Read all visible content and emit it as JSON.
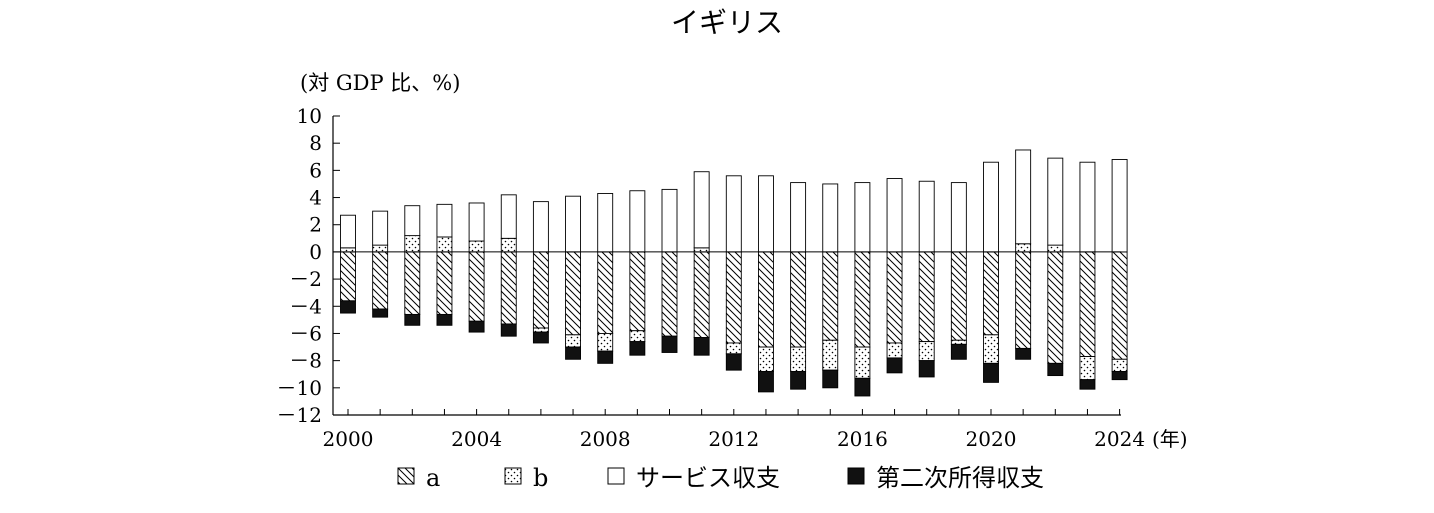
{
  "chart_data": {
    "type": "bar",
    "stacked": true,
    "title": "イギリス",
    "ylabel": "(対 GDP 比、%)",
    "xlabel": "(年)",
    "ylim": [
      -12,
      10
    ],
    "yticks": [
      10,
      8,
      6,
      4,
      2,
      0,
      -2,
      -4,
      -6,
      -8,
      -10,
      -12
    ],
    "ytick_labels": [
      "10",
      "8",
      "6",
      "4",
      "2",
      "0",
      "－2",
      "－4",
      "－6",
      "－8",
      "－10",
      "－12"
    ],
    "xtick_labels": [
      "2000",
      "2004",
      "2008",
      "2012",
      "2016",
      "2020",
      "2024"
    ],
    "categories": [
      2000,
      2001,
      2002,
      2003,
      2004,
      2005,
      2006,
      2007,
      2008,
      2009,
      2010,
      2011,
      2012,
      2013,
      2014,
      2015,
      2016,
      2017,
      2018,
      2019,
      2020,
      2021,
      2022,
      2023,
      2024
    ],
    "series": [
      {
        "name": "a",
        "pattern": "hatch",
        "values": [
          -3.6,
          -4.2,
          -4.6,
          -4.6,
          -5.1,
          -5.3,
          -5.6,
          -6.1,
          -6.0,
          -5.8,
          -6.2,
          -6.3,
          -6.7,
          -7.0,
          -7.0,
          -6.5,
          -7.0,
          -6.7,
          -6.6,
          -6.5,
          -6.1,
          -7.1,
          -8.2,
          -7.7,
          -7.9
        ]
      },
      {
        "name": "b",
        "pattern": "dots",
        "values": [
          0.3,
          0.5,
          1.2,
          1.1,
          0.8,
          1.0,
          0,
          0,
          0,
          0,
          0,
          0.3,
          0,
          0,
          0,
          0,
          0,
          0,
          0,
          0,
          0,
          0.6,
          0.5,
          0,
          0
        ]
      },
      {
        "name": "b",
        "pattern": "dots",
        "legend": false,
        "values": [
          0,
          0,
          0,
          0,
          0,
          0,
          -0.3,
          -0.9,
          -1.3,
          -0.8,
          0,
          0,
          -0.8,
          -1.8,
          -1.8,
          -2.2,
          -2.3,
          -1.1,
          -1.4,
          -0.3,
          -2.1,
          0,
          0,
          -1.7,
          -0.9
        ]
      },
      {
        "name": "サービス収支",
        "pattern": "white",
        "values": [
          2.4,
          2.5,
          2.2,
          2.4,
          2.8,
          3.2,
          3.7,
          4.1,
          4.3,
          4.5,
          4.6,
          5.6,
          5.6,
          5.6,
          5.1,
          5.0,
          5.1,
          5.4,
          5.2,
          5.1,
          6.6,
          6.9,
          6.4,
          6.6,
          6.8
        ]
      },
      {
        "name": "第二次所得収支",
        "pattern": "black",
        "values": [
          -0.9,
          -0.6,
          -0.8,
          -0.8,
          -0.8,
          -0.9,
          -0.8,
          -0.9,
          -0.9,
          -1.0,
          -1.2,
          -1.3,
          -1.2,
          -1.5,
          -1.3,
          -1.3,
          -1.3,
          -1.1,
          -1.2,
          -1.1,
          -1.4,
          -0.8,
          -0.9,
          -0.7,
          -0.6
        ]
      }
    ],
    "legend_placement": "bottom",
    "legend": [
      {
        "label": "a",
        "pattern": "hatch"
      },
      {
        "label": "b",
        "pattern": "dots"
      },
      {
        "label": "サービス収支",
        "pattern": "white"
      },
      {
        "label": "第二次所得収支",
        "pattern": "black"
      }
    ],
    "grid": false
  }
}
